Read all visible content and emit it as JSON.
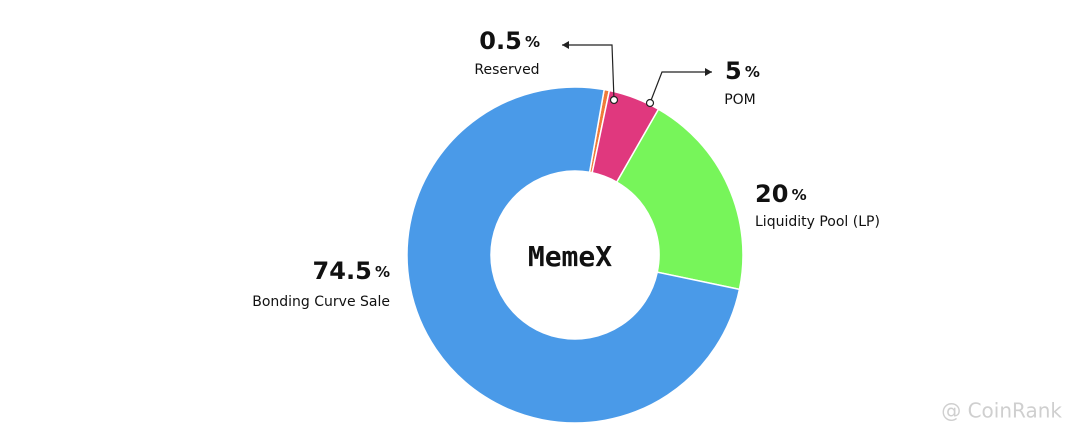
{
  "chart_data": {
    "type": "pie",
    "center_text": "MemeX",
    "unit": "%",
    "categories": [
      "Reserved",
      "POM",
      "Liquidity Pool (LP)",
      "Bonding Curve Sale"
    ],
    "values": [
      0.5,
      5,
      20,
      74.5
    ],
    "colors": [
      "#f07a3a",
      "#e0387e",
      "#77f55a",
      "#4a9ae8"
    ]
  },
  "watermark": "@ CoinRank"
}
